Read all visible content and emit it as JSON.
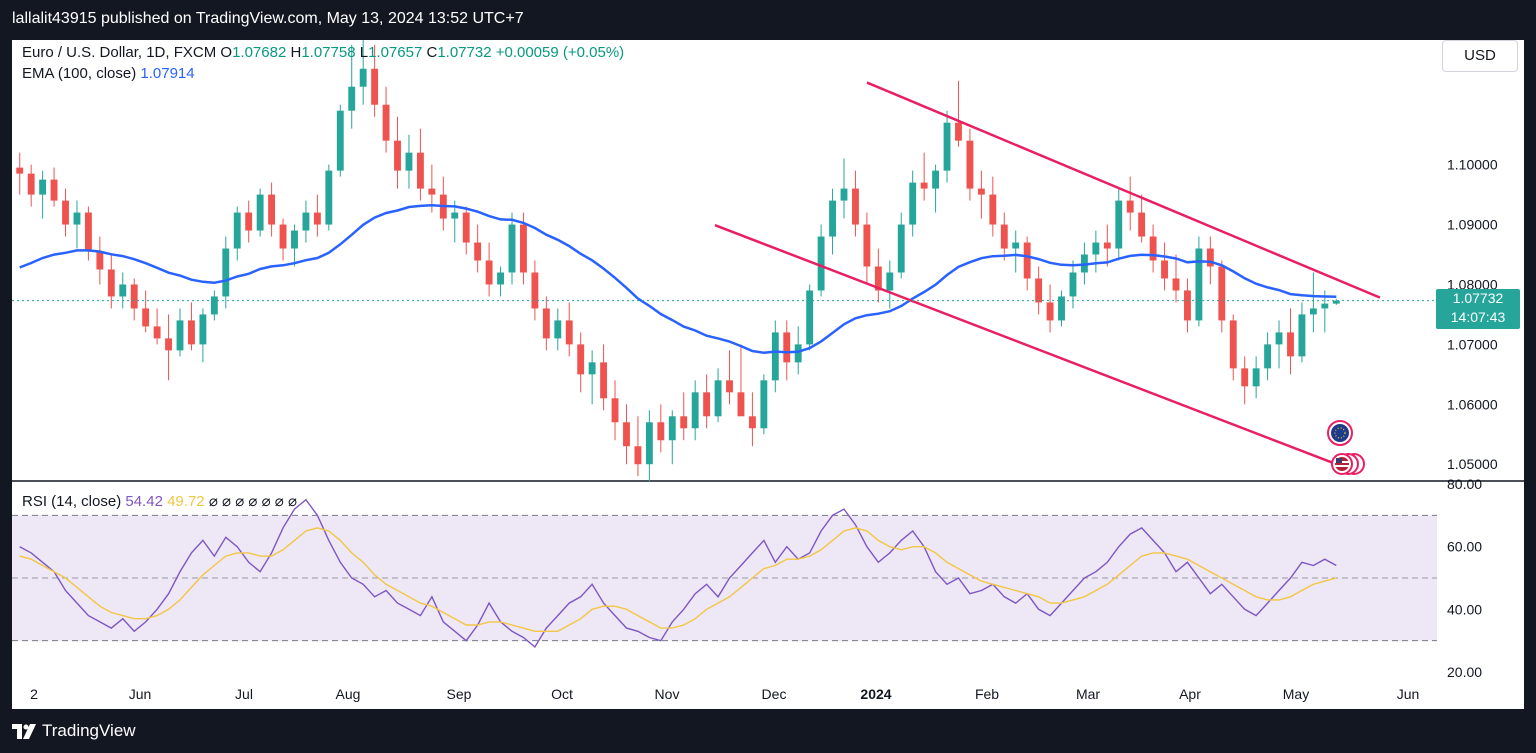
{
  "header": {
    "published_text": "lallalit43915 published on TradingView.com, May 13, 2024 13:52 UTC+7"
  },
  "legend": {
    "symbol": "Euro / U.S. Dollar, 1D, FXCM",
    "o_label": "O",
    "o_value": "1.07682",
    "h_label": "H",
    "h_value": "1.07758",
    "l_label": "L",
    "l_value": "1.07657",
    "c_label": "C",
    "c_value": "1.07732",
    "change": "+0.00059 (+0.05%)",
    "ema_label": "EMA (100, close)",
    "ema_value": "1.07914",
    "rsi_label": "RSI (14, close)",
    "rsi_value": "54.42",
    "rsi_ma_value": "49.72",
    "rsi_na": "⌀ ⌀ ⌀ ⌀ ⌀ ⌀ ⌀"
  },
  "currency_button": "USD",
  "price_box": {
    "price": "1.07732",
    "countdown": "14:07:43"
  },
  "footer": {
    "brand": "TradingView"
  },
  "colors": {
    "up": "#26a69a",
    "down": "#ef5350",
    "ema": "#2962ff",
    "channel": "#e91e63",
    "rsi": "#7e57c2",
    "rsi_ma": "#f2c744",
    "rsi_band": "#ede7f6"
  },
  "chart_data": {
    "type": "candlestick",
    "price_axis": {
      "ticks": [
        1.05,
        1.06,
        1.07,
        1.08,
        1.09,
        1.1
      ],
      "labels": [
        "1.05000",
        "1.06000",
        "1.07000",
        "1.08000",
        "1.09000",
        "1.10000"
      ],
      "range": [
        1.0472,
        1.1208
      ]
    },
    "x_labels": [
      "2",
      "Jun",
      "Jul",
      "Aug",
      "Sep",
      "Oct",
      "Nov",
      "Dec",
      "2024",
      "Feb",
      "Mar",
      "Apr",
      "May",
      "Jun"
    ],
    "candles_ohlc": [
      [
        1.0995,
        1.102,
        1.095,
        1.0985
      ],
      [
        1.0985,
        1.1,
        1.093,
        1.095
      ],
      [
        1.095,
        1.099,
        1.091,
        1.0975
      ],
      [
        1.0975,
        1.0995,
        1.093,
        1.094
      ],
      [
        1.094,
        1.096,
        1.088,
        1.09
      ],
      [
        1.09,
        1.094,
        1.086,
        1.092
      ],
      [
        1.092,
        1.093,
        1.084,
        1.0855
      ],
      [
        1.0855,
        1.088,
        1.08,
        1.0825
      ],
      [
        1.0825,
        1.085,
        1.076,
        1.078
      ],
      [
        1.078,
        1.082,
        1.076,
        1.08
      ],
      [
        1.08,
        1.081,
        1.074,
        1.076
      ],
      [
        1.076,
        1.079,
        1.072,
        1.073
      ],
      [
        1.073,
        1.076,
        1.07,
        1.071
      ],
      [
        1.071,
        1.075,
        1.064,
        1.069
      ],
      [
        1.069,
        1.076,
        1.068,
        1.074
      ],
      [
        1.074,
        1.077,
        1.069,
        1.07
      ],
      [
        1.07,
        1.076,
        1.067,
        1.075
      ],
      [
        1.075,
        1.079,
        1.074,
        1.078
      ],
      [
        1.078,
        1.088,
        1.076,
        1.086
      ],
      [
        1.086,
        1.093,
        1.084,
        1.092
      ],
      [
        1.092,
        1.094,
        1.087,
        1.089
      ],
      [
        1.089,
        1.096,
        1.088,
        1.095
      ],
      [
        1.095,
        1.097,
        1.088,
        1.09
      ],
      [
        1.09,
        1.091,
        1.084,
        1.086
      ],
      [
        1.086,
        1.09,
        1.083,
        1.089
      ],
      [
        1.089,
        1.094,
        1.087,
        1.092
      ],
      [
        1.092,
        1.095,
        1.088,
        1.09
      ],
      [
        1.09,
        1.1,
        1.089,
        1.099
      ],
      [
        1.099,
        1.11,
        1.098,
        1.109
      ],
      [
        1.109,
        1.12,
        1.106,
        1.113
      ],
      [
        1.113,
        1.121,
        1.11,
        1.116
      ],
      [
        1.116,
        1.12,
        1.108,
        1.11
      ],
      [
        1.11,
        1.113,
        1.102,
        1.104
      ],
      [
        1.104,
        1.108,
        1.096,
        1.099
      ],
      [
        1.099,
        1.105,
        1.096,
        1.102
      ],
      [
        1.102,
        1.106,
        1.094,
        1.096
      ],
      [
        1.096,
        1.1,
        1.092,
        1.095
      ],
      [
        1.095,
        1.098,
        1.089,
        1.091
      ],
      [
        1.091,
        1.094,
        1.087,
        1.092
      ],
      [
        1.092,
        1.093,
        1.085,
        1.087
      ],
      [
        1.087,
        1.09,
        1.082,
        1.084
      ],
      [
        1.084,
        1.087,
        1.078,
        1.08
      ],
      [
        1.08,
        1.083,
        1.078,
        1.082
      ],
      [
        1.082,
        1.092,
        1.08,
        1.09
      ],
      [
        1.09,
        1.092,
        1.08,
        1.082
      ],
      [
        1.082,
        1.084,
        1.074,
        1.076
      ],
      [
        1.076,
        1.078,
        1.069,
        1.071
      ],
      [
        1.071,
        1.076,
        1.069,
        1.074
      ],
      [
        1.074,
        1.077,
        1.068,
        1.07
      ],
      [
        1.07,
        1.072,
        1.062,
        1.065
      ],
      [
        1.065,
        1.069,
        1.06,
        1.067
      ],
      [
        1.067,
        1.07,
        1.059,
        1.061
      ],
      [
        1.061,
        1.064,
        1.054,
        1.057
      ],
      [
        1.057,
        1.06,
        1.05,
        1.053
      ],
      [
        1.053,
        1.058,
        1.048,
        1.05
      ],
      [
        1.05,
        1.059,
        1.047,
        1.057
      ],
      [
        1.057,
        1.06,
        1.052,
        1.054
      ],
      [
        1.054,
        1.059,
        1.05,
        1.058
      ],
      [
        1.058,
        1.062,
        1.054,
        1.056
      ],
      [
        1.056,
        1.064,
        1.054,
        1.062
      ],
      [
        1.062,
        1.065,
        1.056,
        1.058
      ],
      [
        1.058,
        1.066,
        1.057,
        1.064
      ],
      [
        1.064,
        1.069,
        1.06,
        1.062
      ],
      [
        1.062,
        1.07,
        1.059,
        1.058
      ],
      [
        1.058,
        1.062,
        1.053,
        1.056
      ],
      [
        1.056,
        1.065,
        1.055,
        1.064
      ],
      [
        1.064,
        1.074,
        1.062,
        1.072
      ],
      [
        1.072,
        1.074,
        1.064,
        1.067
      ],
      [
        1.067,
        1.073,
        1.065,
        1.07
      ],
      [
        1.07,
        1.08,
        1.069,
        1.079
      ],
      [
        1.079,
        1.09,
        1.078,
        1.088
      ],
      [
        1.088,
        1.096,
        1.085,
        1.094
      ],
      [
        1.094,
        1.101,
        1.091,
        1.096
      ],
      [
        1.096,
        1.099,
        1.088,
        1.09
      ],
      [
        1.09,
        1.092,
        1.08,
        1.083
      ],
      [
        1.083,
        1.086,
        1.077,
        1.079
      ],
      [
        1.079,
        1.084,
        1.076,
        1.082
      ],
      [
        1.082,
        1.092,
        1.081,
        1.09
      ],
      [
        1.09,
        1.099,
        1.088,
        1.097
      ],
      [
        1.097,
        1.102,
        1.094,
        1.096
      ],
      [
        1.096,
        1.1,
        1.092,
        1.099
      ],
      [
        1.099,
        1.109,
        1.097,
        1.107
      ],
      [
        1.107,
        1.114,
        1.103,
        1.104
      ],
      [
        1.104,
        1.106,
        1.094,
        1.096
      ],
      [
        1.096,
        1.099,
        1.091,
        1.095
      ],
      [
        1.095,
        1.098,
        1.088,
        1.09
      ],
      [
        1.09,
        1.092,
        1.084,
        1.086
      ],
      [
        1.086,
        1.089,
        1.082,
        1.087
      ],
      [
        1.087,
        1.088,
        1.079,
        1.081
      ],
      [
        1.081,
        1.083,
        1.075,
        1.077
      ],
      [
        1.077,
        1.08,
        1.072,
        1.074
      ],
      [
        1.074,
        1.079,
        1.073,
        1.078
      ],
      [
        1.078,
        1.084,
        1.076,
        1.082
      ],
      [
        1.082,
        1.087,
        1.08,
        1.085
      ],
      [
        1.085,
        1.089,
        1.082,
        1.087
      ],
      [
        1.087,
        1.09,
        1.083,
        1.086
      ],
      [
        1.086,
        1.096,
        1.084,
        1.094
      ],
      [
        1.094,
        1.098,
        1.089,
        1.092
      ],
      [
        1.092,
        1.095,
        1.087,
        1.088
      ],
      [
        1.088,
        1.09,
        1.082,
        1.084
      ],
      [
        1.084,
        1.087,
        1.079,
        1.081
      ],
      [
        1.081,
        1.085,
        1.077,
        1.079
      ],
      [
        1.079,
        1.081,
        1.072,
        1.074
      ],
      [
        1.074,
        1.088,
        1.073,
        1.086
      ],
      [
        1.086,
        1.088,
        1.08,
        1.083
      ],
      [
        1.083,
        1.084,
        1.072,
        1.074
      ],
      [
        1.074,
        1.075,
        1.064,
        1.066
      ],
      [
        1.066,
        1.068,
        1.06,
        1.063
      ],
      [
        1.063,
        1.068,
        1.061,
        1.066
      ],
      [
        1.066,
        1.072,
        1.064,
        1.07
      ],
      [
        1.07,
        1.074,
        1.066,
        1.072
      ],
      [
        1.072,
        1.076,
        1.065,
        1.068
      ],
      [
        1.068,
        1.077,
        1.067,
        1.075
      ],
      [
        1.075,
        1.082,
        1.072,
        1.076
      ],
      [
        1.076,
        1.079,
        1.072,
        1.0768
      ],
      [
        1.0768,
        1.0776,
        1.0766,
        1.0773
      ]
    ],
    "ema_100_value": 1.07914,
    "channel_upper": {
      "from": 1.1137,
      "to": 1.0778
    },
    "channel_lower": {
      "from": 1.0899,
      "to": 1.0499
    },
    "rsi": {
      "axis": {
        "ticks": [
          20,
          40,
          60,
          80
        ],
        "labels": [
          "20.00",
          "40.00",
          "60.00",
          "80.00"
        ],
        "upper_band": 70,
        "middle": 50,
        "lower_band": 30
      },
      "last": 54.42,
      "ma_last": 49.72,
      "values": [
        60,
        58,
        55,
        52,
        46,
        42,
        38,
        36,
        34,
        37,
        33,
        36,
        40,
        45,
        52,
        58,
        62,
        57,
        63,
        60,
        55,
        52,
        58,
        66,
        72,
        75,
        70,
        62,
        55,
        50,
        48,
        44,
        46,
        42,
        40,
        38,
        44,
        36,
        33,
        30,
        35,
        42,
        36,
        33,
        31,
        28,
        34,
        38,
        42,
        44,
        48,
        42,
        38,
        34,
        33,
        31,
        30,
        36,
        40,
        45,
        48,
        44,
        50,
        54,
        58,
        62,
        55,
        60,
        56,
        58,
        65,
        70,
        72,
        67,
        60,
        55,
        58,
        62,
        65,
        60,
        52,
        48,
        50,
        45,
        46,
        48,
        44,
        42,
        45,
        40,
        38,
        42,
        46,
        50,
        52,
        55,
        60,
        64,
        66,
        62,
        58,
        52,
        55,
        50,
        45,
        48,
        44,
        40,
        38,
        42,
        46,
        50,
        55,
        54,
        56,
        54
      ],
      "ma": [
        57,
        56,
        54,
        52,
        50,
        47,
        44,
        41,
        39,
        38,
        37,
        37,
        38,
        40,
        43,
        47,
        51,
        54,
        57,
        58,
        58,
        57,
        57,
        59,
        62,
        65,
        66,
        65,
        62,
        58,
        55,
        51,
        48,
        46,
        44,
        42,
        41,
        39,
        37,
        35,
        35,
        36,
        36,
        35,
        34,
        33,
        33,
        33,
        35,
        37,
        40,
        41,
        41,
        40,
        38,
        36,
        34,
        34,
        35,
        37,
        40,
        42,
        44,
        47,
        50,
        53,
        54,
        56,
        56,
        57,
        59,
        62,
        65,
        66,
        65,
        62,
        60,
        59,
        60,
        60,
        58,
        55,
        53,
        51,
        49,
        48,
        47,
        46,
        45,
        44,
        42,
        42,
        43,
        44,
        46,
        48,
        51,
        54,
        57,
        58,
        58,
        57,
        56,
        54,
        52,
        50,
        48,
        46,
        44,
        43,
        43,
        44,
        46,
        48,
        49,
        50
      ]
    }
  }
}
